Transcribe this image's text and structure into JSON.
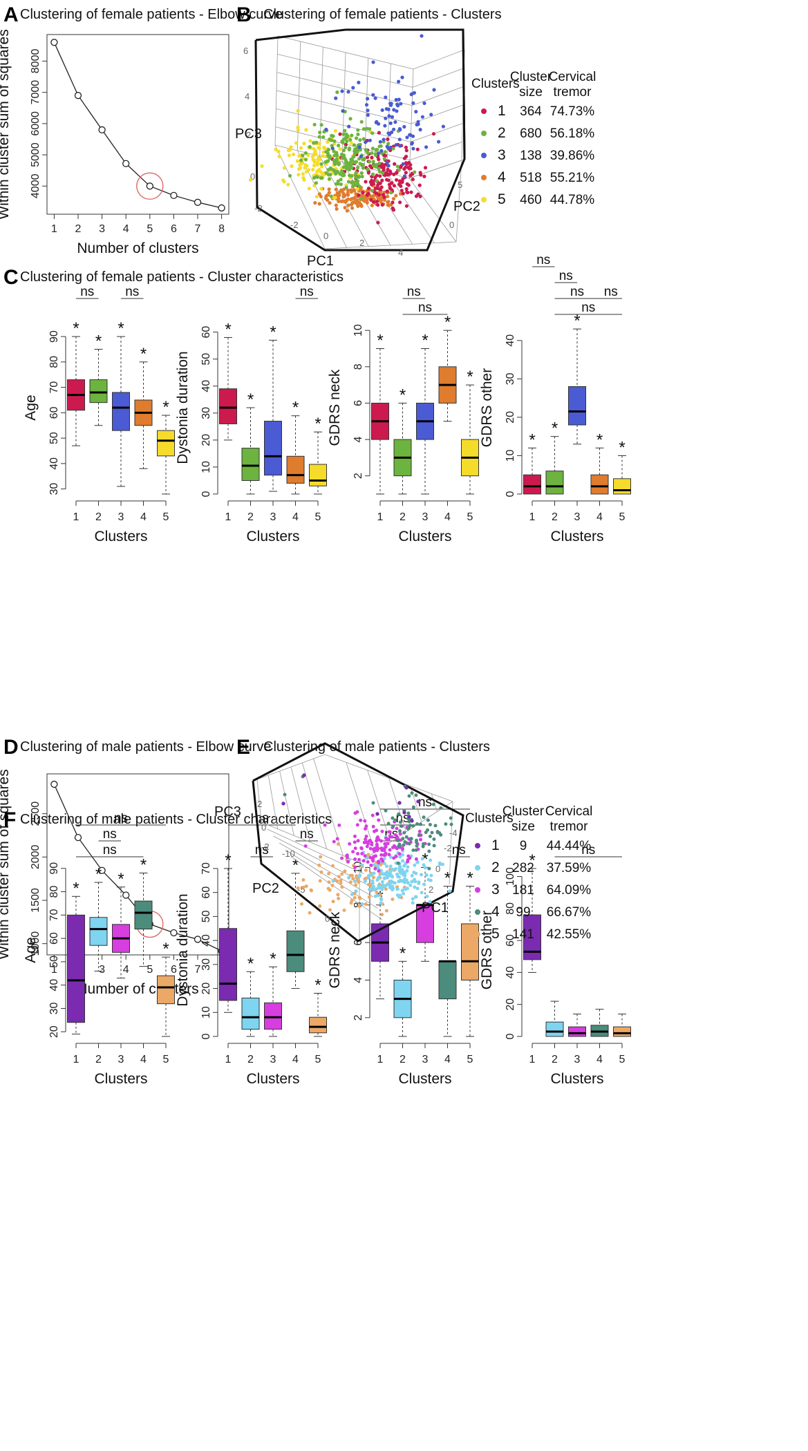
{
  "colors": {
    "female": [
      "#cc1a4f",
      "#6db33f",
      "#4a5bd4",
      "#e07c2e",
      "#f5dc2a"
    ],
    "male": [
      "#7a2bb0",
      "#7fd4f0",
      "#d63ee0",
      "#4b8c7c",
      "#eca866"
    ],
    "circle": "#e07070"
  },
  "chart_data": [
    {
      "id": "A",
      "letter": "A",
      "type": "line",
      "title": "Clustering of female patients - Elbow curve",
      "xlabel": "Number of clusters",
      "ylabel": "Within cluster sum of squares",
      "x": [
        1,
        2,
        3,
        4,
        5,
        6,
        7,
        8
      ],
      "y": [
        8600,
        6900,
        5800,
        4720,
        4000,
        3700,
        3480,
        3300
      ],
      "xlim": [
        0.7,
        8.3
      ],
      "ylim": [
        3100,
        8850
      ],
      "xticks": [
        "1",
        "2",
        "3",
        "4",
        "5",
        "6",
        "7",
        "8"
      ],
      "yticks": [
        4000,
        5000,
        6000,
        7000,
        8000
      ],
      "highlight": 5
    },
    {
      "id": "B",
      "letter": "B",
      "type": "scatter",
      "title": "Clustering of female patients - Clusters",
      "axes": [
        "PC1",
        "PC2",
        "PC3"
      ],
      "pc3_ticks": [
        "6",
        "4",
        "2",
        "0",
        "-2"
      ],
      "pc1_ticks": [
        "-2",
        "0",
        "2",
        "4"
      ],
      "pc2_ticks": [
        "5",
        "0"
      ],
      "legend_headers": [
        "Clusters",
        "Cluster size",
        "Cervical tremor"
      ],
      "clusters": [
        {
          "cluster": "1",
          "size": "364",
          "tremor": "74.73%"
        },
        {
          "cluster": "2",
          "size": "680",
          "tremor": "56.18%"
        },
        {
          "cluster": "3",
          "size": "138",
          "tremor": "39.86%"
        },
        {
          "cluster": "4",
          "size": "518",
          "tremor": "55.21%"
        },
        {
          "cluster": "5",
          "size": "460",
          "tremor": "44.78%"
        }
      ]
    },
    {
      "id": "C",
      "letter": "C",
      "type": "boxplot",
      "title": "Clustering of female patients - Cluster characteristics",
      "palette": "female",
      "panels": [
        {
          "ylabel": "Age",
          "ylim": [
            28,
            96
          ],
          "yticks": [
            30,
            40,
            50,
            60,
            70,
            80,
            90
          ],
          "stars": [
            1,
            1,
            1,
            1,
            1
          ],
          "boxes": [
            [
              47,
              61,
              67,
              73,
              90
            ],
            [
              55,
              64,
              68,
              73,
              85
            ],
            [
              31,
              53,
              62,
              68,
              90
            ],
            [
              38,
              55,
              60,
              65,
              80
            ],
            [
              28,
              43,
              49,
              53,
              59
            ]
          ],
          "ns": [
            [
              1,
              2,
              2
            ],
            [
              3,
              4,
              2
            ]
          ]
        },
        {
          "ylabel": "Dystonia duration",
          "ylim": [
            0,
            64
          ],
          "yticks": [
            0,
            10,
            20,
            30,
            40,
            50,
            60
          ],
          "stars": [
            1,
            1,
            1,
            1,
            1
          ],
          "boxes": [
            [
              20,
              26,
              32,
              39,
              58
            ],
            [
              0,
              5,
              10.5,
              17,
              32
            ],
            [
              1,
              7,
              14,
              27,
              57
            ],
            [
              0,
              4,
              7,
              14,
              29
            ],
            [
              0,
              3,
              5,
              11,
              23
            ]
          ],
          "ns": [
            [
              4,
              5,
              2
            ]
          ]
        },
        {
          "ylabel": "GDRS neck",
          "ylim": [
            1,
            10.5
          ],
          "yticks": [
            2,
            4,
            6,
            8,
            10
          ],
          "stars": [
            1,
            1,
            1,
            1,
            1
          ],
          "boxes": [
            [
              1,
              4,
              5,
              6,
              9
            ],
            [
              1,
              2,
              3,
              4,
              6
            ],
            [
              1,
              4,
              5,
              6,
              9
            ],
            [
              5,
              6,
              7,
              8,
              10
            ],
            [
              1,
              2,
              3,
              4,
              7
            ]
          ],
          "ns": [
            [
              2,
              3,
              2
            ],
            [
              2,
              4,
              1
            ]
          ]
        },
        {
          "ylabel": "GDRS other",
          "ylim": [
            0,
            45
          ],
          "yticks": [
            0,
            10,
            20,
            30,
            40
          ],
          "stars": [
            1,
            1,
            1,
            1,
            1
          ],
          "boxes": [
            [
              0,
              0,
              2,
              5,
              12
            ],
            [
              0,
              0,
              2,
              6,
              15
            ],
            [
              13,
              18,
              21.5,
              28,
              43
            ],
            [
              0,
              0,
              2,
              5,
              12
            ],
            [
              0,
              0,
              1,
              4,
              10
            ]
          ],
          "ns": [
            [
              1,
              2,
              4
            ],
            [
              2,
              3,
              3
            ],
            [
              2,
              4,
              2
            ],
            [
              2,
              5,
              1
            ],
            [
              4,
              5,
              2
            ]
          ]
        }
      ],
      "xlabel": "Clusters",
      "categories": [
        "1",
        "2",
        "3",
        "4",
        "5"
      ]
    },
    {
      "id": "D",
      "letter": "D",
      "type": "line",
      "title": "Clustering of male patients - Elbow curve",
      "xlabel": "Number of clusters",
      "ylabel": "Within cluster sum of squares",
      "x": [
        1,
        2,
        3,
        4,
        5,
        6,
        7,
        8
      ],
      "y": [
        2840,
        2225,
        1845,
        1560,
        1225,
        1125,
        1050,
        915
      ],
      "xlim": [
        0.7,
        8.3
      ],
      "ylim": [
        870,
        2960
      ],
      "xticks": [
        "1",
        "2",
        "3",
        "4",
        "5",
        "6",
        "7",
        "8"
      ],
      "yticks": [
        1000,
        1500,
        2000,
        2500
      ],
      "highlight": 5
    },
    {
      "id": "E",
      "letter": "E",
      "type": "scatter",
      "title": "Clustering of male patients - Clusters",
      "axes": [
        "PC1",
        "PC2",
        "PC3"
      ],
      "pc3_ticks": [
        "2",
        "0",
        "-2"
      ],
      "pc2_ticks": [
        "-10",
        "-5",
        "0"
      ],
      "pc1_ticks": [
        "2",
        "0",
        "-2",
        "-4"
      ],
      "legend_headers": [
        "Clusters",
        "Cluster size",
        "Cervical tremor"
      ],
      "clusters": [
        {
          "cluster": "1",
          "size": "9",
          "tremor": "44.44%"
        },
        {
          "cluster": "2",
          "size": "282",
          "tremor": "37.59%"
        },
        {
          "cluster": "3",
          "size": "181",
          "tremor": "64.09%"
        },
        {
          "cluster": "4",
          "size": "99",
          "tremor": "66.67%"
        },
        {
          "cluster": "5",
          "size": "141",
          "tremor": "42.55%"
        }
      ]
    },
    {
      "id": "F",
      "letter": "F",
      "type": "boxplot",
      "title": "Clustering of male patients - Cluster characteristics",
      "palette": "male",
      "panels": [
        {
          "ylabel": "Age",
          "ylim": [
            18,
            92
          ],
          "yticks": [
            20,
            30,
            40,
            50,
            60,
            70,
            80,
            90
          ],
          "stars": [
            1,
            1,
            1,
            1,
            1
          ],
          "boxes": [
            [
              19,
              24,
              42,
              70,
              78
            ],
            [
              46,
              57,
              64,
              69,
              84
            ],
            [
              43,
              54,
              60,
              66,
              82
            ],
            [
              48,
              64,
              71,
              76,
              88
            ],
            [
              18,
              32,
              39,
              44,
              52
            ]
          ],
          "ns": [
            [
              1,
              5,
              3
            ],
            [
              2,
              3,
              2
            ],
            [
              1,
              4,
              1
            ]
          ]
        },
        {
          "ylabel": "Dystonia duration",
          "ylim": [
            0,
            72
          ],
          "yticks": [
            0,
            10,
            20,
            30,
            40,
            50,
            60,
            70
          ],
          "stars": [
            1,
            1,
            1,
            1,
            1
          ],
          "boxes": [
            [
              10,
              15,
              22,
              45,
              70
            ],
            [
              0,
              3,
              8,
              16,
              27
            ],
            [
              0,
              3,
              8,
              14,
              29
            ],
            [
              20,
              27,
              34,
              44,
              68
            ],
            [
              0,
              1.5,
              4,
              8,
              18
            ]
          ],
          "ns": [
            [
              1,
              4,
              3
            ],
            [
              2,
              3,
              1
            ],
            [
              4,
              5,
              2
            ]
          ]
        },
        {
          "ylabel": "GDRS neck",
          "ylim": [
            1,
            10.2
          ],
          "yticks": [
            2,
            4,
            6,
            8,
            10
          ],
          "stars": [
            1,
            1,
            1,
            1,
            1
          ],
          "boxes": [
            [
              3,
              5,
              6,
              7,
              8
            ],
            [
              1,
              2,
              3,
              4,
              5
            ],
            [
              5,
              6,
              8,
              8,
              10
            ],
            [
              1,
              3,
              5,
              5,
              9
            ],
            [
              1,
              4,
              5,
              7,
              9
            ]
          ],
          "ns": [
            [
              1,
              5,
              4
            ],
            [
              1,
              3,
              3
            ],
            [
              1,
              2,
              2
            ],
            [
              4,
              5,
              1
            ]
          ]
        },
        {
          "ylabel": "GDRS other",
          "ylim": [
            0,
            108
          ],
          "yticks": [
            0,
            20,
            40,
            60,
            80,
            100
          ],
          "stars": [
            1,
            0,
            0,
            0,
            0
          ],
          "boxes": [
            [
              40,
              48,
              53,
              76,
              105
            ],
            [
              0,
              0,
              3,
              9,
              22
            ],
            [
              0,
              0,
              2,
              6,
              14
            ],
            [
              0,
              0,
              3,
              7,
              17
            ],
            [
              0,
              0,
              2,
              6,
              14
            ]
          ],
          "ns": [
            [
              2,
              5,
              1
            ]
          ]
        }
      ],
      "xlabel": "Clusters",
      "categories": [
        "1",
        "2",
        "3",
        "4",
        "5"
      ]
    }
  ]
}
